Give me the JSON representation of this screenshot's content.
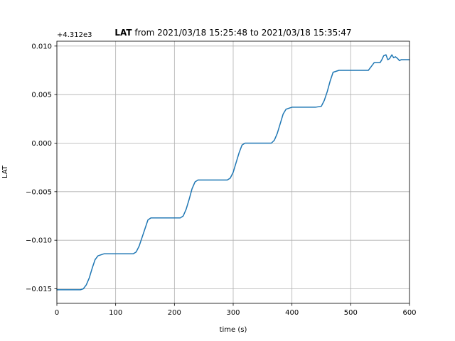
{
  "chart_data": {
    "type": "line",
    "title": {
      "bold": "LAT",
      "rest": " from 2021/03/18 15:25:48 to 2021/03/18 15:35:47"
    },
    "xlabel": "time (s)",
    "ylabel": "LAT",
    "y_offset_label": "+4.312e3",
    "xlim": [
      0,
      600
    ],
    "ylim": [
      -0.0165,
      0.0105
    ],
    "x_ticks": [
      0,
      100,
      200,
      300,
      400,
      500,
      600
    ],
    "x_tick_labels": [
      "0",
      "100",
      "200",
      "300",
      "400",
      "500",
      "600"
    ],
    "y_ticks": [
      -0.015,
      -0.01,
      -0.005,
      0.0,
      0.005,
      0.01
    ],
    "y_tick_labels": [
      "−0.015",
      "−0.010",
      "−0.005",
      "0.000",
      "0.005",
      "0.010"
    ],
    "grid": true,
    "line_color": "#1f77b4",
    "series": [
      {
        "x": [
          0,
          10,
          20,
          30,
          40,
          45,
          50,
          55,
          60,
          65,
          70,
          75,
          80,
          90,
          100,
          110,
          120,
          130,
          135,
          140,
          145,
          150,
          155,
          160,
          170,
          180,
          190,
          200,
          210,
          215,
          220,
          225,
          230,
          235,
          240,
          250,
          260,
          270,
          280,
          290,
          295,
          300,
          305,
          310,
          315,
          320,
          330,
          340,
          350,
          360,
          365,
          370,
          375,
          380,
          385,
          390,
          395,
          400,
          410,
          420,
          430,
          440,
          450,
          455,
          460,
          465,
          470,
          480,
          490,
          500,
          510,
          520,
          530,
          535,
          540,
          545,
          550,
          553,
          556,
          560,
          563,
          566,
          570,
          573,
          576,
          580,
          583,
          586,
          590,
          595,
          600
        ],
        "y": [
          -0.0151,
          -0.0151,
          -0.0151,
          -0.0151,
          -0.0151,
          -0.015,
          -0.0146,
          -0.0139,
          -0.0129,
          -0.012,
          -0.0116,
          -0.0115,
          -0.0114,
          -0.0114,
          -0.0114,
          -0.0114,
          -0.0114,
          -0.0114,
          -0.0112,
          -0.0106,
          -0.0097,
          -0.0088,
          -0.0079,
          -0.0077,
          -0.0077,
          -0.0077,
          -0.0077,
          -0.0077,
          -0.0077,
          -0.0075,
          -0.0068,
          -0.0058,
          -0.0047,
          -0.004,
          -0.0038,
          -0.0038,
          -0.0038,
          -0.0038,
          -0.0038,
          -0.0038,
          -0.0036,
          -0.003,
          -0.002,
          -0.001,
          -0.0002,
          0.0,
          0.0,
          0.0,
          0.0,
          0.0,
          0.0,
          0.0003,
          0.001,
          0.002,
          0.003,
          0.0035,
          0.0036,
          0.0037,
          0.0037,
          0.0037,
          0.0037,
          0.0037,
          0.0038,
          0.0044,
          0.0053,
          0.0064,
          0.0073,
          0.0075,
          0.0075,
          0.0075,
          0.0075,
          0.0075,
          0.0075,
          0.0079,
          0.0083,
          0.0083,
          0.0083,
          0.0086,
          0.009,
          0.0091,
          0.0086,
          0.0087,
          0.0091,
          0.0088,
          0.0089,
          0.0087,
          0.0085,
          0.0086,
          0.0086,
          0.0086,
          0.0086
        ]
      }
    ]
  }
}
